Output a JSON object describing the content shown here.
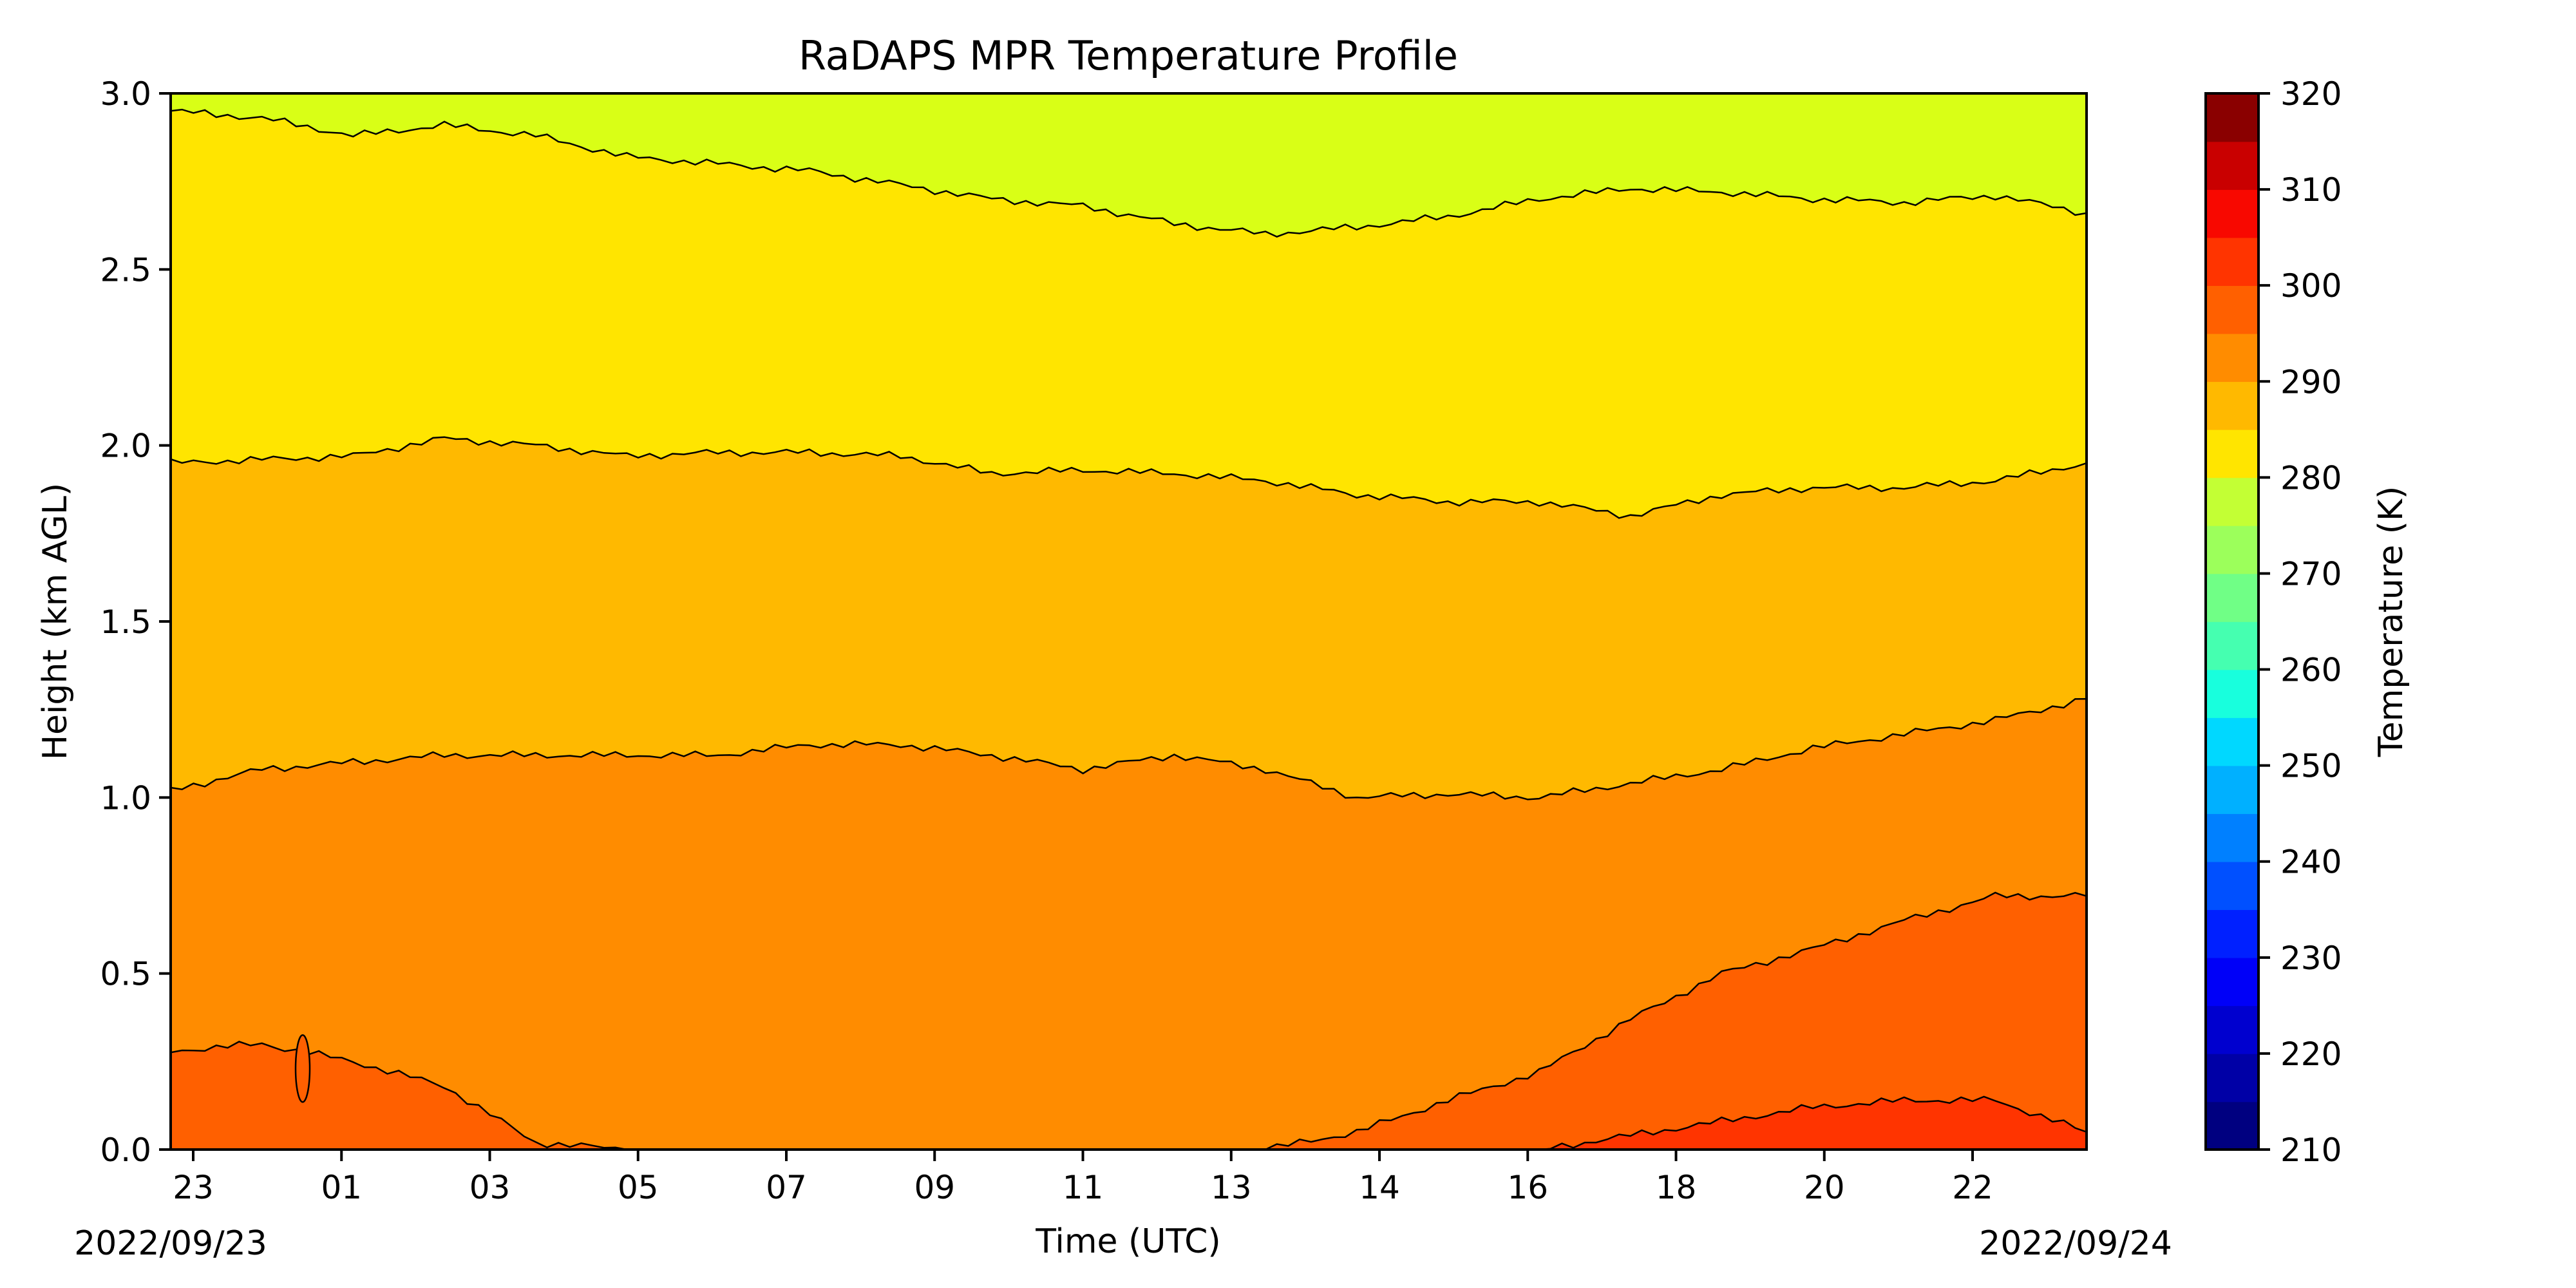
{
  "chart_data": {
    "type": "heatmap",
    "subtype": "filled-contour",
    "title": "RaDAPS MPR Temperature Profile",
    "xlabel": "Time (UTC)",
    "ylabel": "Height (km AGL)",
    "start_date": "2022/09/23",
    "end_date": "2022/09/24",
    "x_ticks": [
      "23",
      "01",
      "03",
      "05",
      "07",
      "09",
      "11",
      "13",
      "14",
      "16",
      "18",
      "20",
      "22"
    ],
    "y_ticks": [
      "0.0",
      "0.5",
      "1.0",
      "1.5",
      "2.0",
      "2.5",
      "3.0"
    ],
    "ylim": [
      0.0,
      3.0
    ],
    "colorbar": {
      "label": "Temperature (K)",
      "range": [
        210,
        320
      ],
      "step": 5,
      "tick_labels": [
        "210",
        "220",
        "230",
        "240",
        "250",
        "260",
        "270",
        "280",
        "290",
        "300",
        "310",
        "320"
      ]
    },
    "contour_levels": [
      {
        "temperature_K": 280,
        "height_km": [
          2.95,
          2.93,
          2.88,
          2.91,
          2.88,
          2.82,
          2.8,
          2.78,
          2.74,
          2.7,
          2.68,
          2.63,
          2.6,
          2.62,
          2.65,
          2.7,
          2.73,
          2.72,
          2.7,
          2.69,
          2.71,
          2.66
        ]
      },
      {
        "temperature_K": 285,
        "height_km": [
          1.95,
          1.96,
          1.97,
          2.02,
          2.0,
          1.97,
          1.98,
          1.98,
          1.97,
          1.92,
          1.93,
          1.92,
          1.9,
          1.86,
          1.84,
          1.84,
          1.8,
          1.86,
          1.88,
          1.88,
          1.9,
          1.95
        ]
      },
      {
        "temperature_K": 290,
        "height_km": [
          1.02,
          1.08,
          1.1,
          1.12,
          1.12,
          1.12,
          1.12,
          1.15,
          1.15,
          1.12,
          1.08,
          1.12,
          1.08,
          1.0,
          1.01,
          1.0,
          1.04,
          1.08,
          1.14,
          1.18,
          1.22,
          1.28
        ]
      },
      {
        "temperature_K": 295,
        "height_km": [
          0.28,
          0.3,
          0.25,
          0.18,
          0.02,
          0.0,
          0.0,
          0.0,
          0.0,
          0.0,
          0.0,
          0.0,
          0.0,
          0.05,
          0.14,
          0.22,
          0.37,
          0.5,
          0.57,
          0.65,
          0.72,
          0.72
        ]
      },
      {
        "temperature_K": 300,
        "height_km": [
          0.0,
          0.0,
          0.0,
          0.0,
          0.0,
          0.0,
          0.0,
          0.0,
          0.0,
          0.0,
          0.0,
          0.0,
          0.0,
          0.0,
          0.0,
          0.0,
          0.04,
          0.08,
          0.12,
          0.14,
          0.14,
          0.05
        ]
      }
    ],
    "fill_colors": {
      "275": "#d9ff16",
      "280": "#ffe500",
      "285": "#ffb900",
      "290": "#ff8c00",
      "295": "#ff6000",
      "300": "#ff3400"
    },
    "colormap": [
      "#000080",
      "#0000a6",
      "#0000cf",
      "#0000f8",
      "#0020ff",
      "#0050ff",
      "#0080ff",
      "#00b0ff",
      "#00d8ff",
      "#18ffdd",
      "#45ffb0",
      "#70ff86",
      "#9cff5b",
      "#c3ff34",
      "#ffe500",
      "#ffb900",
      "#ff8c00",
      "#ff6000",
      "#ff3400",
      "#f80800",
      "#c90000",
      "#8a0000"
    ]
  }
}
